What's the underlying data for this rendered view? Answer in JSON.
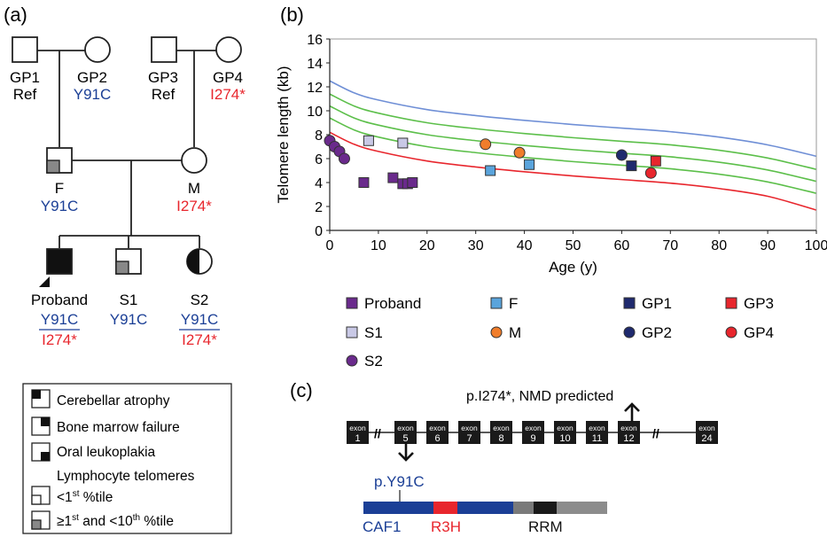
{
  "panels": {
    "a": "(a)",
    "b": "(b)",
    "c": "(c)"
  },
  "colors": {
    "blue": "#1b3f96",
    "red": "#e8262d",
    "navy": "#1f2a6e",
    "purple": "#6a2a8c",
    "orange": "#f07d2b",
    "lightblue": "#5aa4dc",
    "green": "#5cbf4a",
    "topline": "#6f8fd6"
  },
  "pedigree": {
    "gp1": {
      "name": "GP1",
      "geno": "Ref"
    },
    "gp2": {
      "name": "GP2",
      "geno": "Y91C"
    },
    "gp3": {
      "name": "GP3",
      "geno": "Ref"
    },
    "gp4": {
      "name": "GP4",
      "geno": "I274*"
    },
    "father": {
      "name": "F",
      "geno": "Y91C"
    },
    "mother": {
      "name": "M",
      "geno": "I274*"
    },
    "proband": {
      "name": "Proband",
      "geno1": "Y91C",
      "geno2": "I274*"
    },
    "s1": {
      "name": "S1",
      "geno": "Y91C"
    },
    "s2": {
      "name": "S2",
      "geno1": "Y91C",
      "geno2": "I274*"
    }
  },
  "legend_key": {
    "cerebellar": "Cerebellar atrophy",
    "marrow": "Bone marrow failure",
    "leukoplakia": "Oral leukoplakia",
    "telomeres": "Lymphocyte telomeres",
    "lt1_prefix": "<1",
    "lt1_sup": "st",
    "lt1_suffix": " %tile",
    "ge1_prefix": "≥1",
    "ge1_sup": "st",
    "ge1_suffix": " and <10",
    "ge1_sup2": "th",
    "ge1_suffix2": " %tile"
  },
  "chart_data": {
    "type": "scatter",
    "xlabel": "Age (y)",
    "ylabel": "Telomere length (kb)",
    "xlim": [
      0,
      100
    ],
    "ylim": [
      0,
      16
    ],
    "xticks": [
      "0",
      "10",
      "20",
      "30",
      "40",
      "50",
      "60",
      "70",
      "80",
      "90",
      "100"
    ],
    "yticks": [
      "0",
      "2",
      "4",
      "6",
      "8",
      "10",
      "12",
      "14",
      "16"
    ],
    "grid": false,
    "percentile_curves": [
      {
        "color": "#6f8fd6",
        "points": [
          [
            0,
            12.5
          ],
          [
            5,
            11.5
          ],
          [
            10,
            10.9
          ],
          [
            20,
            10.1
          ],
          [
            30,
            9.6
          ],
          [
            40,
            9.2
          ],
          [
            50,
            8.85
          ],
          [
            60,
            8.55
          ],
          [
            70,
            8.25
          ],
          [
            80,
            7.8
          ],
          [
            90,
            7.15
          ],
          [
            100,
            6.2
          ]
        ]
      },
      {
        "color": "#5cbf4a",
        "points": [
          [
            0,
            11.4
          ],
          [
            5,
            10.4
          ],
          [
            10,
            9.8
          ],
          [
            20,
            9.0
          ],
          [
            30,
            8.5
          ],
          [
            40,
            8.1
          ],
          [
            50,
            7.75
          ],
          [
            60,
            7.45
          ],
          [
            70,
            7.15
          ],
          [
            80,
            6.7
          ],
          [
            90,
            6.05
          ],
          [
            100,
            5.1
          ]
        ]
      },
      {
        "color": "#5cbf4a",
        "points": [
          [
            0,
            10.4
          ],
          [
            5,
            9.4
          ],
          [
            10,
            8.8
          ],
          [
            20,
            8.0
          ],
          [
            30,
            7.5
          ],
          [
            40,
            7.1
          ],
          [
            50,
            6.75
          ],
          [
            60,
            6.45
          ],
          [
            70,
            6.15
          ],
          [
            80,
            5.7
          ],
          [
            90,
            5.05
          ],
          [
            100,
            4.1
          ]
        ]
      },
      {
        "color": "#5cbf4a",
        "points": [
          [
            0,
            9.4
          ],
          [
            5,
            8.4
          ],
          [
            10,
            7.8
          ],
          [
            20,
            7.0
          ],
          [
            30,
            6.5
          ],
          [
            40,
            6.1
          ],
          [
            50,
            5.75
          ],
          [
            60,
            5.45
          ],
          [
            70,
            5.15
          ],
          [
            80,
            4.7
          ],
          [
            90,
            4.05
          ],
          [
            100,
            3.1
          ]
        ]
      },
      {
        "color": "#e8262d",
        "points": [
          [
            0,
            8.2
          ],
          [
            5,
            7.2
          ],
          [
            10,
            6.6
          ],
          [
            20,
            5.8
          ],
          [
            30,
            5.3
          ],
          [
            40,
            4.9
          ],
          [
            50,
            4.55
          ],
          [
            60,
            4.25
          ],
          [
            70,
            3.95
          ],
          [
            80,
            3.5
          ],
          [
            90,
            2.85
          ],
          [
            100,
            1.7
          ]
        ]
      }
    ],
    "series": [
      {
        "name": "Proband",
        "marker": "square",
        "color": "#6a2a8c",
        "points": [
          [
            7,
            4.0
          ],
          [
            13,
            4.4
          ],
          [
            15,
            3.9
          ],
          [
            16,
            3.9
          ],
          [
            17,
            4.0
          ]
        ]
      },
      {
        "name": "S1",
        "marker": "square",
        "color": "#c9c9e6",
        "points": [
          [
            8,
            7.5
          ],
          [
            15,
            7.3
          ]
        ]
      },
      {
        "name": "S2",
        "marker": "circle",
        "color": "#6a2a8c",
        "points": [
          [
            0,
            7.5
          ],
          [
            1,
            7.0
          ],
          [
            2,
            6.6
          ],
          [
            3,
            6.0
          ]
        ]
      },
      {
        "name": "F",
        "marker": "square",
        "color": "#5aa4dc",
        "points": [
          [
            33,
            5.0
          ],
          [
            41,
            5.5
          ]
        ]
      },
      {
        "name": "M",
        "marker": "circle",
        "color": "#f07d2b",
        "points": [
          [
            32,
            7.2
          ],
          [
            39,
            6.5
          ]
        ]
      },
      {
        "name": "GP1",
        "marker": "square",
        "color": "#1f2a6e",
        "points": [
          [
            62,
            5.4
          ]
        ]
      },
      {
        "name": "GP2",
        "marker": "circle",
        "color": "#1f2a6e",
        "points": [
          [
            60,
            6.3
          ]
        ]
      },
      {
        "name": "GP3",
        "marker": "square",
        "color": "#e8262d",
        "points": [
          [
            67,
            5.8
          ]
        ]
      },
      {
        "name": "GP4",
        "marker": "circle",
        "color": "#e8262d",
        "points": [
          [
            66,
            4.8
          ]
        ]
      }
    ]
  },
  "gene": {
    "annotation": "p.I274*, NMD predicted",
    "exon_word": "exon",
    "exons": [
      "1",
      "5",
      "6",
      "7",
      "8",
      "9",
      "10",
      "11",
      "12",
      "24"
    ],
    "variant": "p.Y91C",
    "domains": {
      "caf1": "CAF1",
      "r3h": "R3H",
      "rrm": "RRM"
    }
  }
}
